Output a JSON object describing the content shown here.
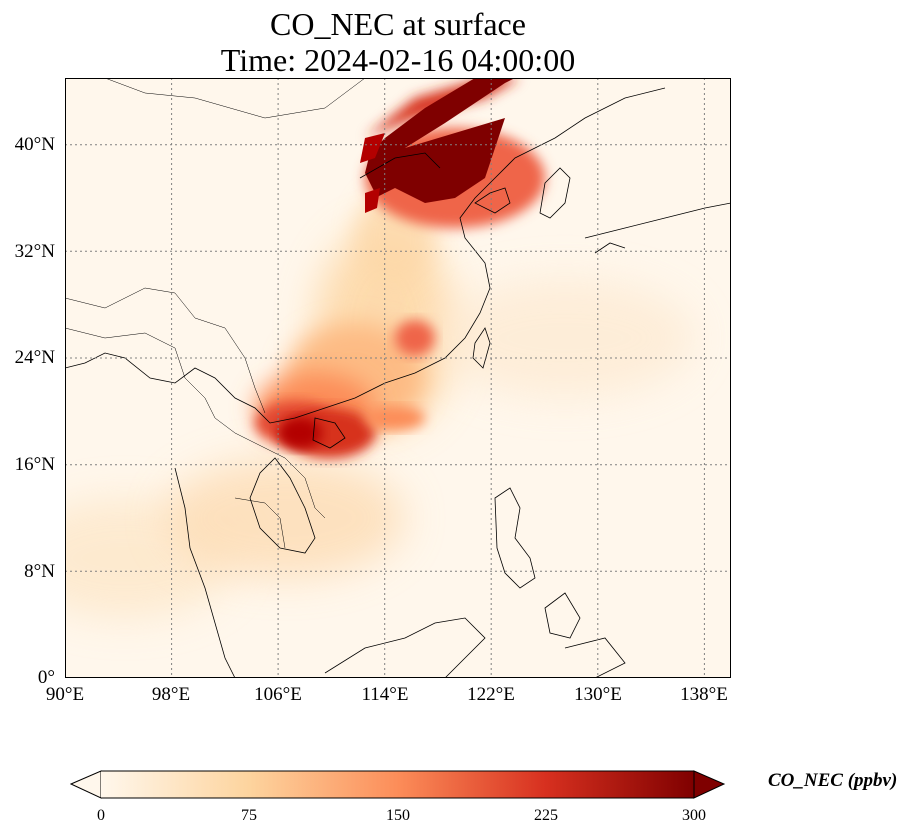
{
  "title_line1": "CO_NEC at surface",
  "title_line2": "Time: 2024-02-16 04:00:00",
  "lat_ticks": [
    "40°N",
    "32°N",
    "24°N",
    "16°N",
    "8°N",
    "0°"
  ],
  "lon_ticks": [
    "90°E",
    "98°E",
    "106°E",
    "114°E",
    "122°E",
    "130°E",
    "138°E"
  ],
  "colorbar": {
    "label": "CO_NEC (ppbv)",
    "ticks": [
      "0",
      "75",
      "150",
      "225",
      "300"
    ],
    "min": 0,
    "max": 300,
    "extend": "both",
    "colormap": "OrRd",
    "colors": [
      "#fff7ec",
      "#fdd49e",
      "#fc8d59",
      "#d7301f",
      "#7f0000"
    ]
  },
  "gridlines": "dotted",
  "map_extent": {
    "lon_min": 90,
    "lon_max": 140,
    "lat_min": 0,
    "lat_max": 45
  }
}
